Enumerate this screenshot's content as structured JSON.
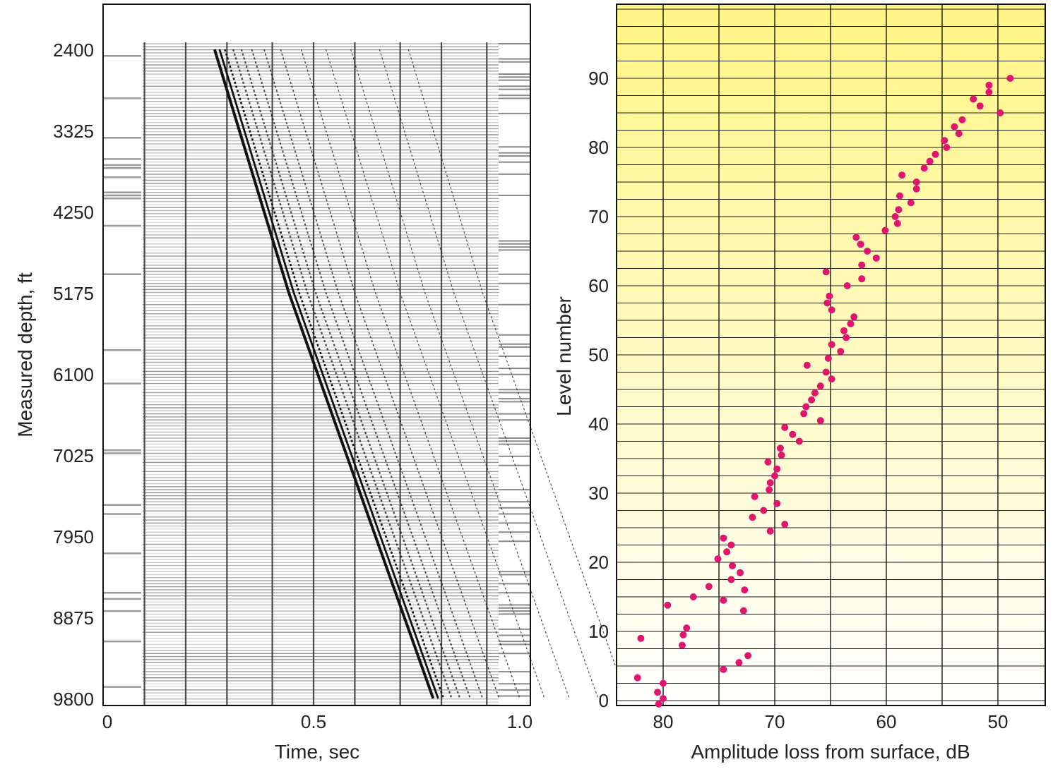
{
  "chart_data": [
    {
      "type": "seismic-section",
      "xlabel": "Time, sec",
      "ylabel": "Measured depth, ft",
      "xlim": [
        0,
        1.0
      ],
      "ylim": [
        9800,
        2400
      ],
      "x_ticks": [
        {
          "value": 0,
          "label": "0"
        },
        {
          "value": 0.5,
          "label": "0.5"
        },
        {
          "value": 1.0,
          "label": "1.0"
        }
      ],
      "y_ticks": [
        {
          "value": 2400,
          "label": "2400"
        },
        {
          "value": 3325,
          "label": "3325"
        },
        {
          "value": 4250,
          "label": "4250"
        },
        {
          "value": 5175,
          "label": "5175"
        },
        {
          "value": 6100,
          "label": "6100"
        },
        {
          "value": 7025,
          "label": "7025"
        },
        {
          "value": 7950,
          "label": "7950"
        },
        {
          "value": 8875,
          "label": "8875"
        },
        {
          "value": 9800,
          "label": "9800"
        }
      ],
      "first_arrival": {
        "depth": [
          2400,
          3325,
          4250,
          5175,
          6100,
          7025,
          7950,
          8875,
          9800
        ],
        "time": [
          0.26,
          0.32,
          0.38,
          0.44,
          0.51,
          0.58,
          0.65,
          0.72,
          0.79
        ]
      },
      "colors": {
        "trace": "#111111",
        "background_line": "#bbbbbb"
      }
    },
    {
      "type": "scatter",
      "xlabel": "Amplitude loss from surface, dB",
      "ylabel": "Level number",
      "xlim": [
        84,
        45
      ],
      "ylim": [
        0,
        95
      ],
      "x_ticks": [
        {
          "value": 80,
          "label": "80"
        },
        {
          "value": 70,
          "label": "70"
        },
        {
          "value": 60,
          "label": "60"
        },
        {
          "value": 50,
          "label": "50"
        }
      ],
      "y_ticks": [
        {
          "value": 0,
          "label": "0"
        },
        {
          "value": 10,
          "label": "10"
        },
        {
          "value": 20,
          "label": "20"
        },
        {
          "value": 30,
          "label": "30"
        },
        {
          "value": 40,
          "label": "40"
        },
        {
          "value": 50,
          "label": "50"
        },
        {
          "value": 60,
          "label": "60"
        },
        {
          "value": 70,
          "label": "70"
        },
        {
          "value": 80,
          "label": "80"
        },
        {
          "value": 90,
          "label": "90"
        }
      ],
      "grid": true,
      "colors": {
        "point": "#e0156e",
        "bg_top": "#fff585",
        "bg_bottom": "#ffffff",
        "grid": "#1a1a1a"
      },
      "points": [
        {
          "x": 80.4,
          "y": -0.5
        },
        {
          "x": 80.0,
          "y": 0.3
        },
        {
          "x": 80.5,
          "y": 1.2
        },
        {
          "x": 80.0,
          "y": 2.5
        },
        {
          "x": 82.3,
          "y": 3.3
        },
        {
          "x": 74.6,
          "y": 4.5
        },
        {
          "x": 73.2,
          "y": 5.5
        },
        {
          "x": 72.4,
          "y": 6.5
        },
        {
          "x": 78.3,
          "y": 8.0
        },
        {
          "x": 82.0,
          "y": 9.0
        },
        {
          "x": 78.2,
          "y": 9.5
        },
        {
          "x": 77.9,
          "y": 10.5
        },
        {
          "x": 72.8,
          "y": 13.0
        },
        {
          "x": 79.6,
          "y": 13.8
        },
        {
          "x": 74.6,
          "y": 14.5
        },
        {
          "x": 77.3,
          "y": 15.0
        },
        {
          "x": 72.7,
          "y": 16.0
        },
        {
          "x": 75.9,
          "y": 16.5
        },
        {
          "x": 73.9,
          "y": 17.5
        },
        {
          "x": 73.1,
          "y": 18.5
        },
        {
          "x": 73.8,
          "y": 19.5
        },
        {
          "x": 75.1,
          "y": 20.5
        },
        {
          "x": 74.3,
          "y": 21.5
        },
        {
          "x": 73.9,
          "y": 22.5
        },
        {
          "x": 74.6,
          "y": 23.5
        },
        {
          "x": 70.4,
          "y": 24.5
        },
        {
          "x": 69.1,
          "y": 25.5
        },
        {
          "x": 72.0,
          "y": 26.5
        },
        {
          "x": 71.0,
          "y": 27.5
        },
        {
          "x": 69.8,
          "y": 28.5
        },
        {
          "x": 71.8,
          "y": 29.5
        },
        {
          "x": 70.5,
          "y": 30.5
        },
        {
          "x": 70.4,
          "y": 31.5
        },
        {
          "x": 70.0,
          "y": 32.5
        },
        {
          "x": 69.8,
          "y": 33.5
        },
        {
          "x": 70.6,
          "y": 34.5
        },
        {
          "x": 69.4,
          "y": 35.5
        },
        {
          "x": 69.5,
          "y": 36.5
        },
        {
          "x": 67.8,
          "y": 37.5
        },
        {
          "x": 68.4,
          "y": 38.5
        },
        {
          "x": 69.1,
          "y": 39.5
        },
        {
          "x": 65.9,
          "y": 40.5
        },
        {
          "x": 67.4,
          "y": 41.5
        },
        {
          "x": 67.2,
          "y": 42.5
        },
        {
          "x": 66.7,
          "y": 43.5
        },
        {
          "x": 66.4,
          "y": 44.5
        },
        {
          "x": 65.9,
          "y": 45.5
        },
        {
          "x": 64.9,
          "y": 46.5
        },
        {
          "x": 65.4,
          "y": 47.5
        },
        {
          "x": 67.1,
          "y": 48.5
        },
        {
          "x": 65.2,
          "y": 49.5
        },
        {
          "x": 64.1,
          "y": 50.5
        },
        {
          "x": 64.9,
          "y": 51.5
        },
        {
          "x": 63.6,
          "y": 52.5
        },
        {
          "x": 63.8,
          "y": 53.5
        },
        {
          "x": 63.2,
          "y": 54.5
        },
        {
          "x": 62.9,
          "y": 55.5
        },
        {
          "x": 64.9,
          "y": 56.5
        },
        {
          "x": 65.3,
          "y": 57.5
        },
        {
          "x": 65.1,
          "y": 58.5
        },
        {
          "x": 63.5,
          "y": 60.0
        },
        {
          "x": 62.2,
          "y": 61.0
        },
        {
          "x": 65.4,
          "y": 62.0
        },
        {
          "x": 62.2,
          "y": 63.0
        },
        {
          "x": 60.9,
          "y": 64.0
        },
        {
          "x": 61.7,
          "y": 65.0
        },
        {
          "x": 62.3,
          "y": 66.0
        },
        {
          "x": 62.7,
          "y": 67.0
        },
        {
          "x": 60.1,
          "y": 68.0
        },
        {
          "x": 59.0,
          "y": 69.0
        },
        {
          "x": 59.2,
          "y": 70.0
        },
        {
          "x": 58.9,
          "y": 71.0
        },
        {
          "x": 57.8,
          "y": 72.0
        },
        {
          "x": 58.8,
          "y": 73.0
        },
        {
          "x": 57.3,
          "y": 74.0
        },
        {
          "x": 57.3,
          "y": 75.0
        },
        {
          "x": 58.6,
          "y": 76.0
        },
        {
          "x": 56.6,
          "y": 77.0
        },
        {
          "x": 56.1,
          "y": 78.0
        },
        {
          "x": 55.6,
          "y": 79.0
        },
        {
          "x": 54.6,
          "y": 80.0
        },
        {
          "x": 54.8,
          "y": 81.0
        },
        {
          "x": 53.5,
          "y": 82.0
        },
        {
          "x": 53.9,
          "y": 83.0
        },
        {
          "x": 53.2,
          "y": 84.0
        },
        {
          "x": 49.8,
          "y": 85.0
        },
        {
          "x": 51.6,
          "y": 86.0
        },
        {
          "x": 52.2,
          "y": 87.0
        },
        {
          "x": 50.8,
          "y": 88.0
        },
        {
          "x": 50.8,
          "y": 89.0
        },
        {
          "x": 48.9,
          "y": 90.0
        }
      ]
    }
  ]
}
